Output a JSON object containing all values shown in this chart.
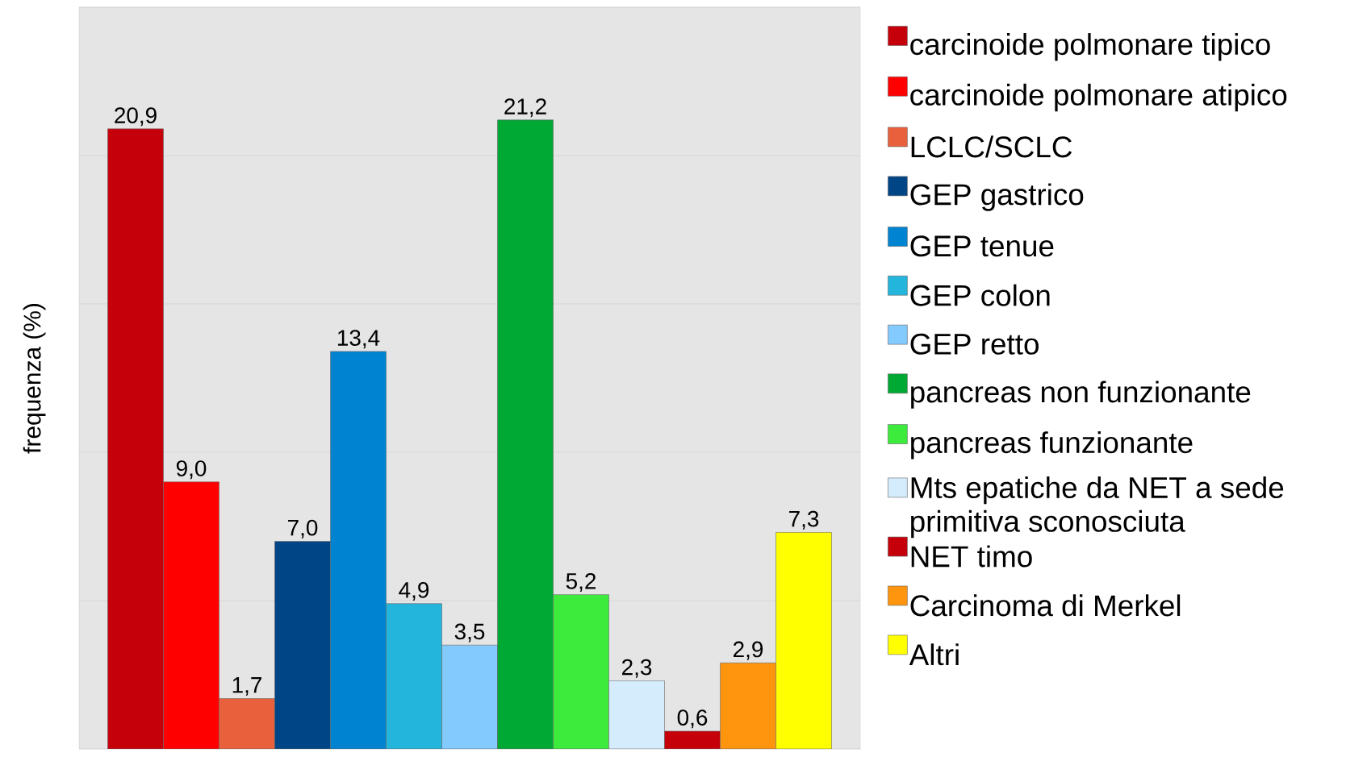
{
  "chart_data": {
    "type": "bar",
    "ylabel": "frequenza (%)",
    "categories": [
      null
    ],
    "ylim": [
      0,
      25
    ],
    "yticks": [
      {
        "value": 0,
        "label": null
      },
      {
        "value": 5,
        "label": null
      },
      {
        "value": 10,
        "label": null
      },
      {
        "value": 15,
        "label": null
      },
      {
        "value": 20,
        "label": null
      },
      {
        "value": 25,
        "label": null
      }
    ],
    "grid": "y",
    "tick_labels": false,
    "legend": "right",
    "series": [
      {
        "name": "carcinoide polmonare tipico",
        "color": "#c5000b",
        "values": [
          20.9
        ],
        "value_labels": [
          "20,9"
        ]
      },
      {
        "name": "carcinoide polmonare atipico",
        "color": "#ff0000",
        "values": [
          9.0
        ],
        "value_labels": [
          "9,0"
        ]
      },
      {
        "name": "LCLC/SCLC",
        "color": "#e8603c",
        "values": [
          1.7
        ],
        "value_labels": [
          "1,7"
        ]
      },
      {
        "name": "GEP gastrico",
        "color": "#004586",
        "values": [
          7.0
        ],
        "value_labels": [
          "7,0"
        ]
      },
      {
        "name": "GEP tenue",
        "color": "#0084d1",
        "values": [
          13.4
        ],
        "value_labels": [
          "13,4"
        ]
      },
      {
        "name": "GEP colon",
        "color": "#23b5dc",
        "values": [
          4.9
        ],
        "value_labels": [
          "4,9"
        ]
      },
      {
        "name": "GEP retto",
        "color": "#83caff",
        "values": [
          3.5
        ],
        "value_labels": [
          "3,5"
        ]
      },
      {
        "name": "pancreas non funzionante",
        "color": "#00a933",
        "values": [
          21.2
        ],
        "value_labels": [
          "21,2"
        ]
      },
      {
        "name": "pancreas funzionante",
        "color": "#3deb3d",
        "values": [
          5.2
        ],
        "value_labels": [
          "5,2"
        ]
      },
      {
        "name": "Mts epatiche da NET a sede primitiva sconosciuta",
        "color": "#d4ecfc",
        "values": [
          2.3
        ],
        "value_labels": [
          "2,3"
        ]
      },
      {
        "name": "NET timo",
        "color": "#c5000b",
        "values": [
          0.6
        ],
        "value_labels": [
          "0,6"
        ]
      },
      {
        "name": "Carcinoma di Merkel",
        "color": "#ff950e",
        "values": [
          2.9
        ],
        "value_labels": [
          "2,9"
        ]
      },
      {
        "name": "Altri",
        "color": "#ffff00",
        "values": [
          7.3
        ],
        "value_labels": [
          "7,3"
        ]
      }
    ]
  }
}
